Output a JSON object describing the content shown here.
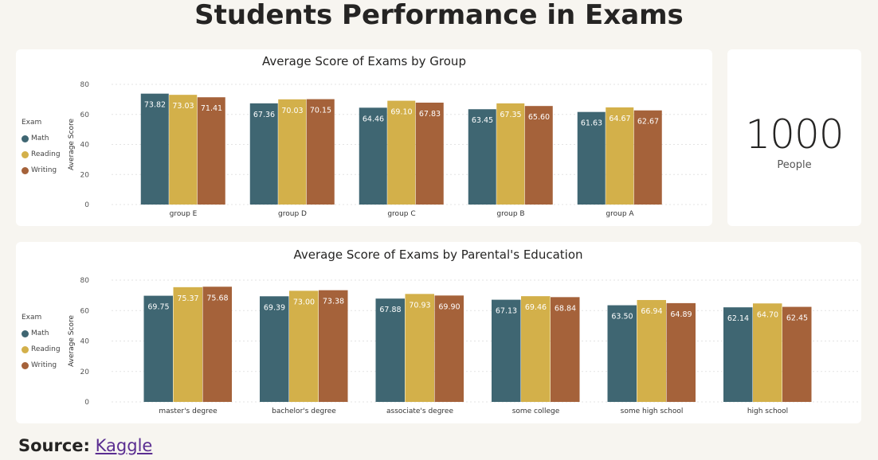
{
  "page_title": "Students Performance in Exams",
  "kpi": {
    "value": "1000",
    "label": "People"
  },
  "source": {
    "label": "Source:",
    "link_text": "Kaggle"
  },
  "legend": {
    "title": "Exam",
    "items": [
      {
        "name": "Math",
        "color": "#3f6672"
      },
      {
        "name": "Reading",
        "color": "#d3b04a"
      },
      {
        "name": "Writing",
        "color": "#a5623a"
      }
    ]
  },
  "chart_data": [
    {
      "type": "bar",
      "title": "Average Score of Exams by Group",
      "xlabel": "",
      "ylabel": "Average Score",
      "ylim": [
        0,
        80
      ],
      "yticks": [
        0,
        20,
        40,
        60,
        80
      ],
      "categories": [
        "group E",
        "group D",
        "group C",
        "group B",
        "group A"
      ],
      "series": [
        {
          "name": "Math",
          "color": "#3f6672",
          "values": [
            73.82,
            67.36,
            64.46,
            63.45,
            61.63
          ]
        },
        {
          "name": "Reading",
          "color": "#d3b04a",
          "values": [
            73.03,
            70.03,
            69.1,
            67.35,
            64.67
          ]
        },
        {
          "name": "Writing",
          "color": "#a5623a",
          "values": [
            71.41,
            70.15,
            67.83,
            65.6,
            62.67
          ]
        }
      ],
      "grid": true,
      "legend_position": "left"
    },
    {
      "type": "bar",
      "title": "Average Score of Exams by Parental's Education",
      "xlabel": "",
      "ylabel": "Average Score",
      "ylim": [
        0,
        80
      ],
      "yticks": [
        0,
        20,
        40,
        60,
        80
      ],
      "categories": [
        "master's degree",
        "bachelor's degree",
        "associate's degree",
        "some college",
        "some high school",
        "high school"
      ],
      "series": [
        {
          "name": "Math",
          "color": "#3f6672",
          "values": [
            69.75,
            69.39,
            67.88,
            67.13,
            63.5,
            62.14
          ]
        },
        {
          "name": "Reading",
          "color": "#d3b04a",
          "values": [
            75.37,
            73.0,
            70.93,
            69.46,
            66.94,
            64.7
          ]
        },
        {
          "name": "Writing",
          "color": "#a5623a",
          "values": [
            75.68,
            73.38,
            69.9,
            68.84,
            64.89,
            62.45
          ]
        }
      ],
      "grid": true,
      "legend_position": "left"
    }
  ]
}
